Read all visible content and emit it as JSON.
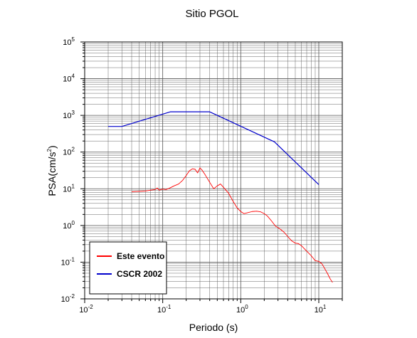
{
  "chart_data": {
    "type": "line",
    "title": "Sitio PGOL",
    "xlabel": "Periodo (s)",
    "ylabel_base": "PSA(cm/s",
    "ylabel_sup": "2",
    "ylabel_end": ")",
    "xscale": "log",
    "yscale": "log",
    "xlim": [
      0.01,
      20
    ],
    "ylim": [
      0.01,
      100000
    ],
    "grid": true,
    "legend_position": "bottom-left",
    "x_ticks": [
      {
        "base": "10",
        "exp": "-2",
        "value": 0.01
      },
      {
        "base": "10",
        "exp": "-1",
        "value": 0.1
      },
      {
        "base": "10",
        "exp": "0",
        "value": 1
      },
      {
        "base": "10",
        "exp": "1",
        "value": 10
      }
    ],
    "y_ticks": [
      {
        "base": "10",
        "exp": "-2",
        "value": 0.01
      },
      {
        "base": "10",
        "exp": "-1",
        "value": 0.1
      },
      {
        "base": "10",
        "exp": "0",
        "value": 1
      },
      {
        "base": "10",
        "exp": "1",
        "value": 10
      },
      {
        "base": "10",
        "exp": "2",
        "value": 100
      },
      {
        "base": "10",
        "exp": "3",
        "value": 1000
      },
      {
        "base": "10",
        "exp": "4",
        "value": 10000
      },
      {
        "base": "10",
        "exp": "5",
        "value": 100000
      }
    ],
    "series": [
      {
        "name": "Este evento",
        "color": "#ff0000",
        "points": [
          [
            0.04,
            8.3
          ],
          [
            0.05,
            8.5
          ],
          [
            0.06,
            8.7
          ],
          [
            0.07,
            9.2
          ],
          [
            0.08,
            9.5
          ],
          [
            0.085,
            10.5
          ],
          [
            0.09,
            9.2
          ],
          [
            0.1,
            9.8
          ],
          [
            0.11,
            9.5
          ],
          [
            0.12,
            10.2
          ],
          [
            0.14,
            12
          ],
          [
            0.16,
            13.5
          ],
          [
            0.18,
            17
          ],
          [
            0.2,
            23
          ],
          [
            0.22,
            31
          ],
          [
            0.24,
            35
          ],
          [
            0.26,
            34
          ],
          [
            0.28,
            27
          ],
          [
            0.3,
            37
          ],
          [
            0.32,
            32
          ],
          [
            0.35,
            24
          ],
          [
            0.4,
            15
          ],
          [
            0.45,
            10
          ],
          [
            0.5,
            12
          ],
          [
            0.55,
            13.5
          ],
          [
            0.6,
            11
          ],
          [
            0.7,
            7.5
          ],
          [
            0.8,
            4.5
          ],
          [
            0.9,
            3
          ],
          [
            1.0,
            2.4
          ],
          [
            1.1,
            2.1
          ],
          [
            1.2,
            2.2
          ],
          [
            1.4,
            2.4
          ],
          [
            1.6,
            2.45
          ],
          [
            1.8,
            2.35
          ],
          [
            2.0,
            2.1
          ],
          [
            2.2,
            1.8
          ],
          [
            2.5,
            1.3
          ],
          [
            2.8,
            0.95
          ],
          [
            3.2,
            0.8
          ],
          [
            3.6,
            0.65
          ],
          [
            4.0,
            0.5
          ],
          [
            4.5,
            0.38
          ],
          [
            5.0,
            0.33
          ],
          [
            5.5,
            0.32
          ],
          [
            6.0,
            0.28
          ],
          [
            7.0,
            0.2
          ],
          [
            8.0,
            0.15
          ],
          [
            9.0,
            0.11
          ],
          [
            10.0,
            0.105
          ],
          [
            11.0,
            0.09
          ],
          [
            12.0,
            0.065
          ],
          [
            13.0,
            0.048
          ],
          [
            14.0,
            0.035
          ],
          [
            15.0,
            0.028
          ]
        ]
      },
      {
        "name": "CSCR 2002",
        "color": "#0000cc",
        "points": [
          [
            0.02,
            500
          ],
          [
            0.03,
            500
          ],
          [
            0.125,
            1250
          ],
          [
            0.4,
            1250
          ],
          [
            2.7,
            190
          ],
          [
            10.0,
            13
          ]
        ]
      }
    ]
  }
}
